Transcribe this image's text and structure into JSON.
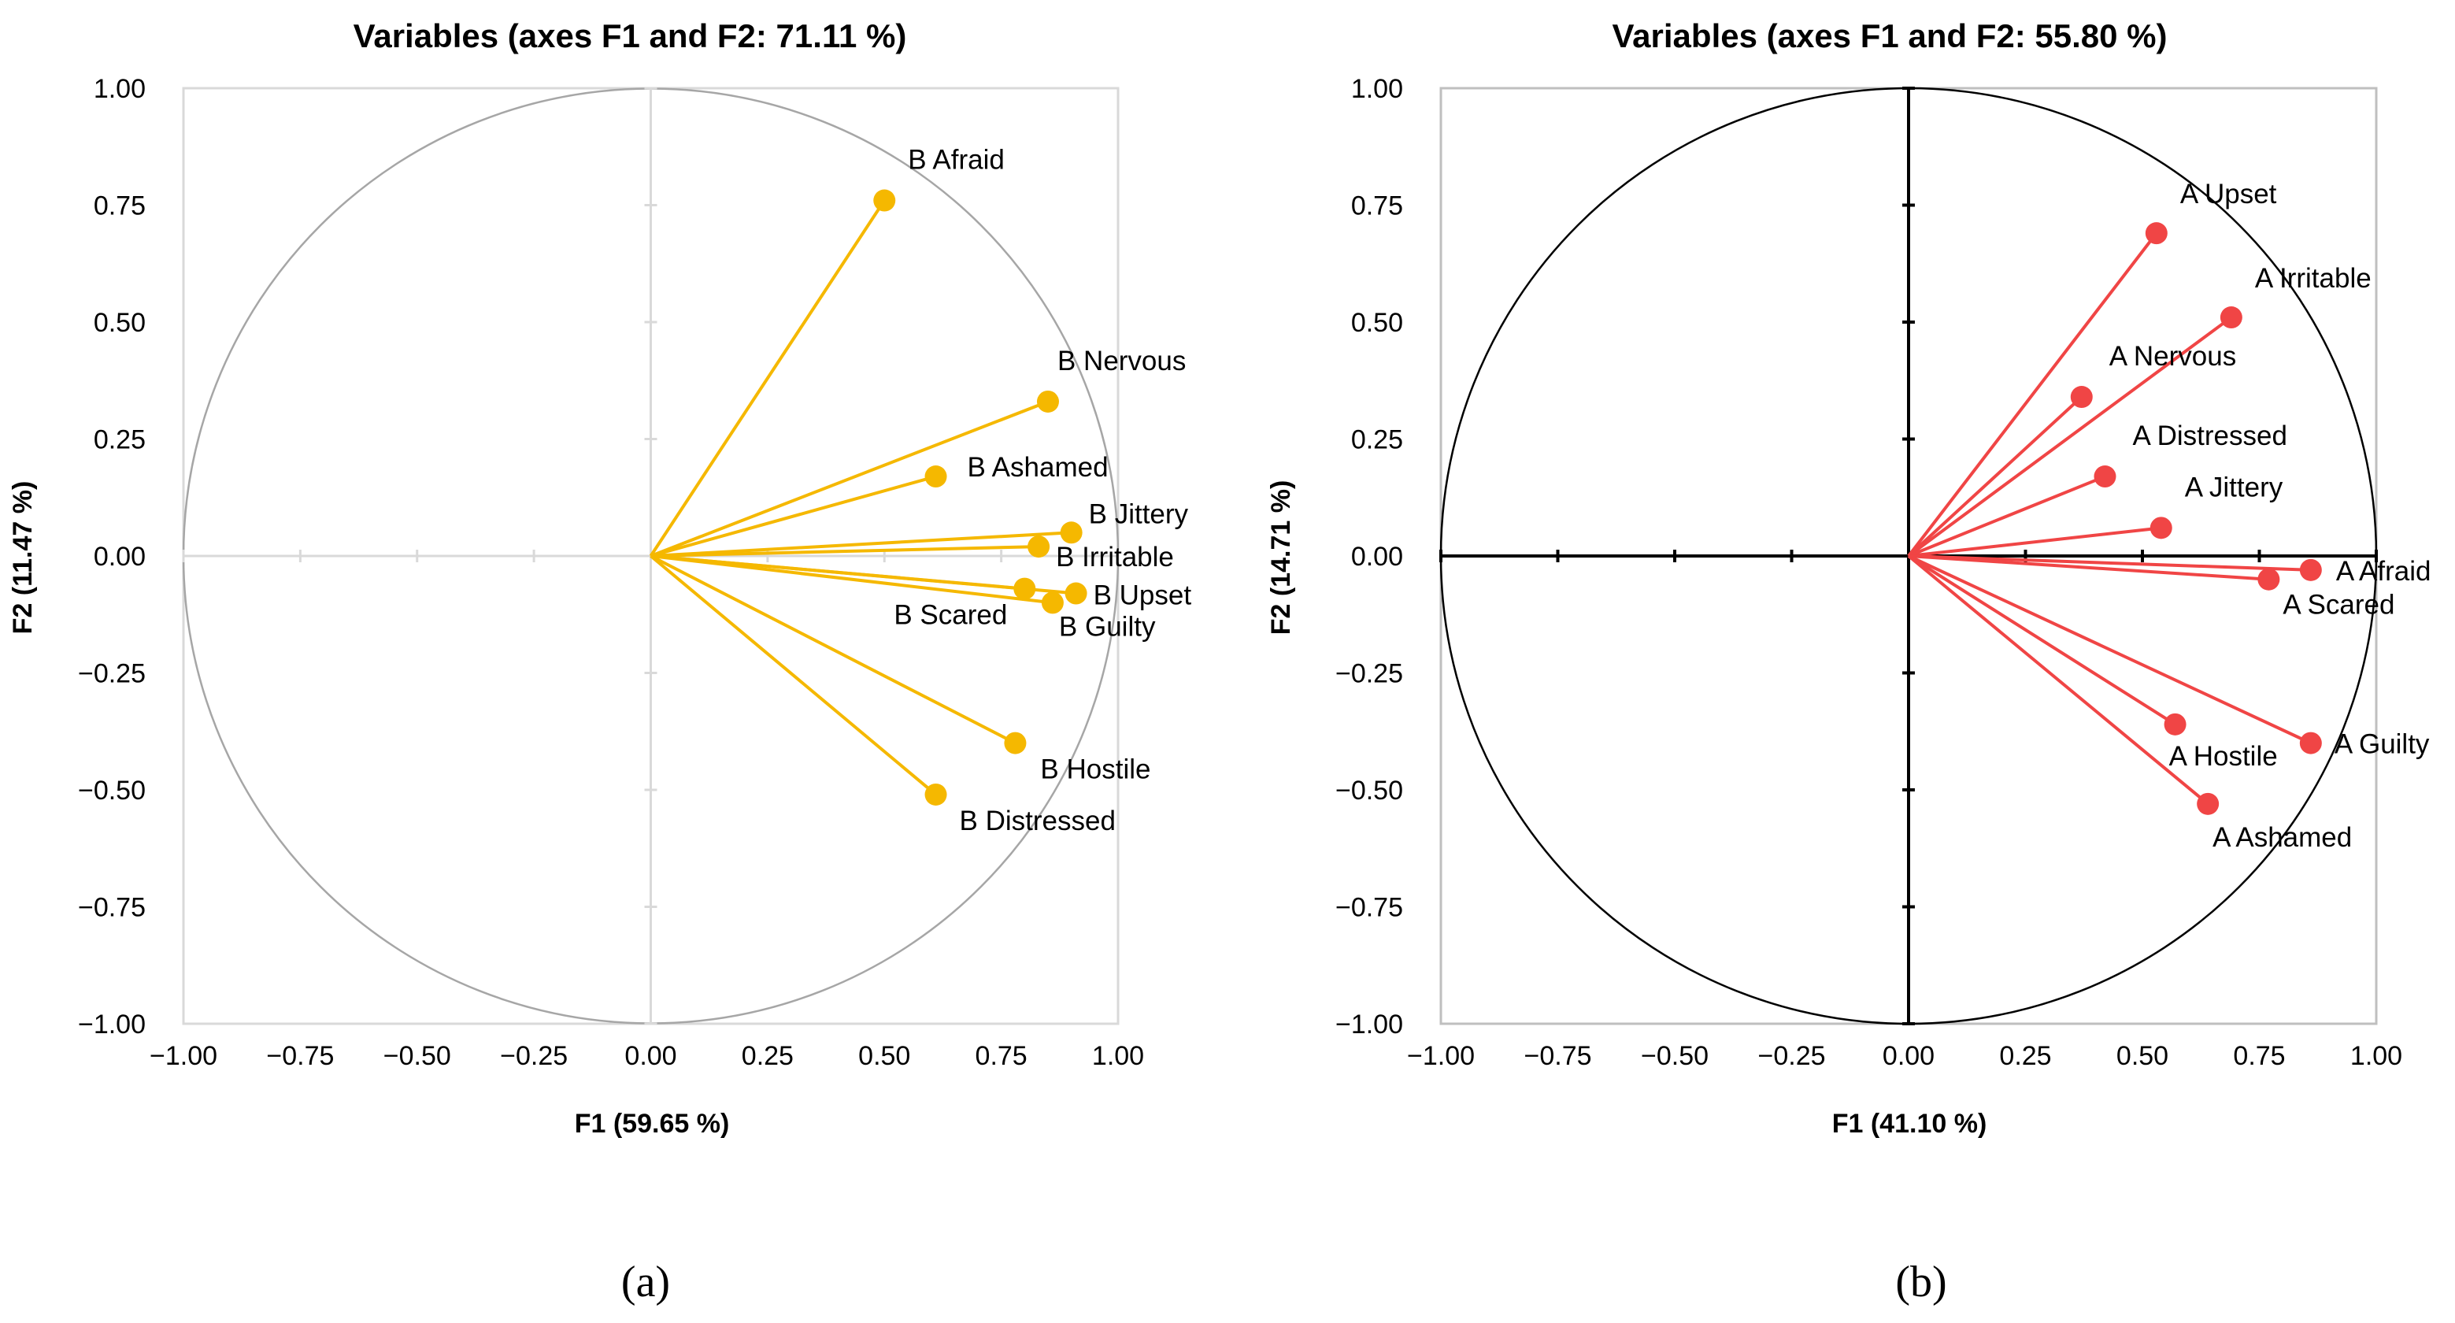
{
  "chart_data": [
    {
      "type": "scatter",
      "subtype": "correlation-circle",
      "title": "Variables (axes F1 and F2: 71.11 %)",
      "xlabel": "F1 (59.65 %)",
      "ylabel": "F2 (11.47 %)",
      "xlim": [
        -1,
        1
      ],
      "ylim": [
        -1,
        1
      ],
      "ticks": [
        "−1.00",
        "−0.75",
        "−0.50",
        "−0.25",
        "0.00",
        "0.25",
        "0.50",
        "0.75",
        "1.00"
      ],
      "tick_values": [
        -1,
        -0.75,
        -0.5,
        -0.25,
        0,
        0.25,
        0.5,
        0.75,
        1
      ],
      "color": "#F5B800",
      "panel_label": "(a)",
      "points": [
        {
          "label": "B Afraid",
          "x": 0.5,
          "y": 0.76
        },
        {
          "label": "B Nervous",
          "x": 0.85,
          "y": 0.33
        },
        {
          "label": "B Ashamed",
          "x": 0.61,
          "y": 0.17
        },
        {
          "label": "B Jittery",
          "x": 0.9,
          "y": 0.05
        },
        {
          "label": "B Irritable",
          "x": 0.83,
          "y": 0.02
        },
        {
          "label": "B Upset",
          "x": 0.91,
          "y": -0.08
        },
        {
          "label": "B Scared",
          "x": 0.8,
          "y": -0.07
        },
        {
          "label": "B Guilty",
          "x": 0.86,
          "y": -0.1
        },
        {
          "label": "B Hostile",
          "x": 0.78,
          "y": -0.4
        },
        {
          "label": "B Distressed",
          "x": 0.61,
          "y": -0.51
        }
      ]
    },
    {
      "type": "scatter",
      "subtype": "correlation-circle",
      "title": "Variables (axes F1 and F2: 55.80 %)",
      "xlabel": "F1 (41.10 %)",
      "ylabel": "F2 (14.71 %)",
      "xlim": [
        -1,
        1
      ],
      "ylim": [
        -1,
        1
      ],
      "ticks": [
        "−1.00",
        "−0.75",
        "−0.50",
        "−0.25",
        "0.00",
        "0.25",
        "0.50",
        "0.75",
        "1.00"
      ],
      "tick_values": [
        -1,
        -0.75,
        -0.5,
        -0.25,
        0,
        0.25,
        0.5,
        0.75,
        1
      ],
      "color": "#F04545",
      "panel_label": "(b)",
      "points": [
        {
          "label": "A Upset",
          "x": 0.53,
          "y": 0.69
        },
        {
          "label": "A Irritable",
          "x": 0.69,
          "y": 0.51
        },
        {
          "label": "A Nervous",
          "x": 0.37,
          "y": 0.34
        },
        {
          "label": "A Distressed",
          "x": 0.42,
          "y": 0.17
        },
        {
          "label": "A Jittery",
          "x": 0.54,
          "y": 0.06
        },
        {
          "label": "A Afraid",
          "x": 0.86,
          "y": -0.03
        },
        {
          "label": "A Scared",
          "x": 0.77,
          "y": -0.05
        },
        {
          "label": "A Hostile",
          "x": 0.57,
          "y": -0.36
        },
        {
          "label": "A Guilty",
          "x": 0.86,
          "y": -0.4
        },
        {
          "label": "A Ashamed",
          "x": 0.64,
          "y": -0.53
        }
      ]
    }
  ]
}
